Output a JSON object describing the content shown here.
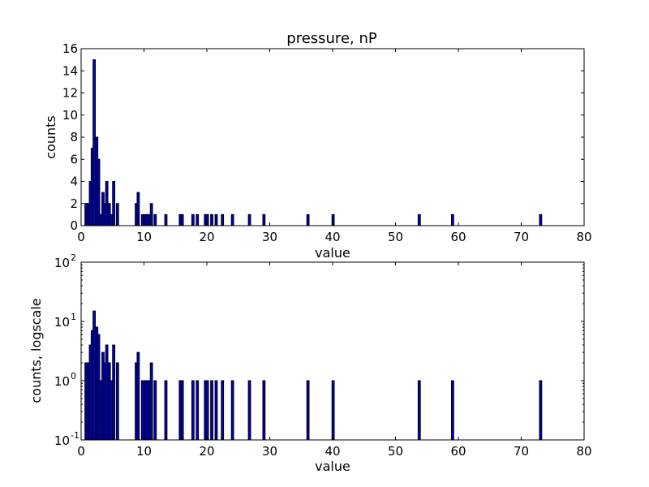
{
  "chart_data": [
    {
      "type": "bar",
      "title": "pressure, nP",
      "xlabel": "value",
      "ylabel": "counts",
      "xlim": [
        0,
        80
      ],
      "ylim": [
        0,
        16
      ],
      "yscale": "linear",
      "xticks": [
        "0",
        "10",
        "20",
        "30",
        "40",
        "50",
        "60",
        "70",
        "80"
      ],
      "yticks": [
        "0",
        "2",
        "4",
        "6",
        "8",
        "10",
        "12",
        "14",
        "16"
      ],
      "color": "#0000cc",
      "bar_width": 0.36,
      "x": [
        0.6,
        0.9,
        1.3,
        1.6,
        1.9,
        2.3,
        2.6,
        2.9,
        3.3,
        3.6,
        3.9,
        4.3,
        4.6,
        5.0,
        5.6,
        5.9,
        8.6,
        8.9,
        9.6,
        10.0,
        10.3,
        10.6,
        11.0,
        11.6,
        13.3,
        15.6,
        15.9,
        17.6,
        18.3,
        19.6,
        19.9,
        20.6,
        21.3,
        22.3,
        23.9,
        26.6,
        28.9,
        35.9,
        39.9,
        53.6,
        58.9,
        72.9
      ],
      "values": [
        2,
        2,
        4,
        7,
        15,
        8,
        6,
        1,
        3,
        2,
        4,
        2,
        1,
        4,
        2,
        0,
        2,
        3,
        1,
        1,
        1,
        1,
        2,
        1,
        1,
        1,
        1,
        1,
        1,
        1,
        1,
        1,
        1,
        1,
        1,
        1,
        1,
        1,
        1,
        1,
        1,
        1
      ]
    },
    {
      "type": "bar",
      "title": "",
      "xlabel": "value",
      "ylabel": "counts, logscale",
      "xlim": [
        0,
        80
      ],
      "ylim": [
        0.1,
        100
      ],
      "yscale": "log",
      "xticks": [
        "0",
        "10",
        "20",
        "30",
        "40",
        "50",
        "60",
        "70",
        "80"
      ],
      "yticks": [
        {
          "base": "10",
          "exp": "2",
          "value": 100
        },
        {
          "base": "10",
          "exp": "1",
          "value": 10
        },
        {
          "base": "10",
          "exp": "0",
          "value": 1
        },
        {
          "base": "10",
          "exp": "-1",
          "value": 0.1
        }
      ],
      "color": "#0000cc",
      "bar_width": 0.36,
      "x": [
        0.6,
        0.9,
        1.3,
        1.6,
        1.9,
        2.3,
        2.6,
        2.9,
        3.3,
        3.6,
        3.9,
        4.3,
        4.6,
        5.0,
        5.6,
        5.9,
        8.6,
        8.9,
        9.6,
        10.0,
        10.3,
        10.6,
        11.0,
        11.6,
        13.3,
        15.6,
        15.9,
        17.6,
        18.3,
        19.6,
        19.9,
        20.6,
        21.3,
        22.3,
        23.9,
        26.6,
        28.9,
        35.9,
        39.9,
        53.6,
        58.9,
        72.9
      ],
      "values": [
        2,
        2,
        4,
        7,
        15,
        8,
        6,
        1,
        3,
        2,
        4,
        2,
        1,
        4,
        2,
        0,
        2,
        3,
        1,
        1,
        1,
        1,
        2,
        1,
        1,
        1,
        1,
        1,
        1,
        1,
        1,
        1,
        1,
        1,
        1,
        1,
        1,
        1,
        1,
        1,
        1,
        1
      ]
    }
  ]
}
